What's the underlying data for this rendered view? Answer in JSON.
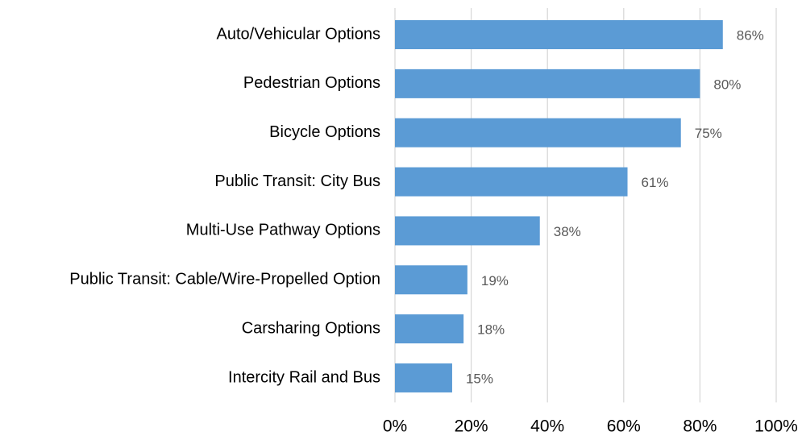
{
  "chart_data": {
    "type": "bar",
    "orientation": "horizontal",
    "categories": [
      "Auto/Vehicular Options",
      "Pedestrian Options",
      "Bicycle Options",
      "Public Transit: City Bus",
      "Multi-Use Pathway Options",
      "Public Transit: Cable/Wire-Propelled Option",
      "Carsharing Options",
      "Intercity Rail and Bus"
    ],
    "values": [
      86,
      80,
      75,
      61,
      38,
      19,
      18,
      15
    ],
    "value_labels": [
      "86%",
      "80%",
      "75%",
      "61%",
      "38%",
      "19%",
      "18%",
      "15%"
    ],
    "color": "#5b9bd5",
    "xlim": [
      0,
      100
    ],
    "xticks": [
      {
        "value": 0,
        "label": "0%"
      },
      {
        "value": 20,
        "label": "20%"
      },
      {
        "value": 40,
        "label": "40%"
      },
      {
        "value": 60,
        "label": "60%"
      },
      {
        "value": 80,
        "label": "80%"
      },
      {
        "value": 100,
        "label": "100%"
      }
    ],
    "grid": true
  }
}
